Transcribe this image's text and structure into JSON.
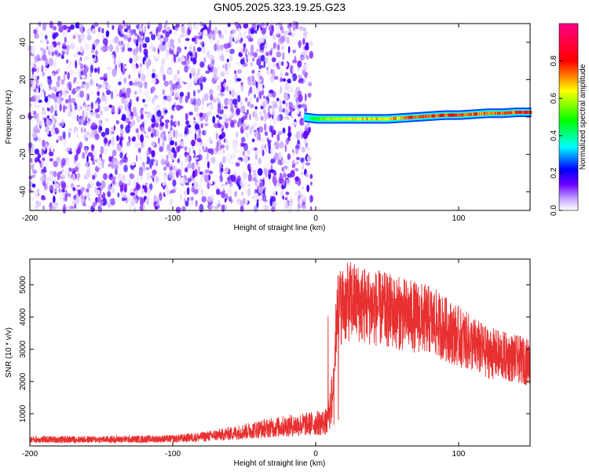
{
  "title": "GN05.2025.323.19.25.G23",
  "chart_data": [
    {
      "type": "heatmap",
      "xlabel": "Height of straight line (km)",
      "ylabel": "Frequency (Hz)",
      "xlim": [
        -200,
        150
      ],
      "ylim": [
        -50,
        50
      ],
      "xticks": [
        -200,
        -100,
        0,
        100
      ],
      "yticks": [
        -40,
        -20,
        0,
        20,
        40
      ],
      "colorbar": {
        "label": "Normalized spectral amplitude",
        "ticks": [
          0.0,
          0.2,
          0.4,
          0.6,
          0.8
        ],
        "range": [
          0,
          1
        ],
        "colors": [
          "#ffffff",
          "#6a00ff",
          "#0000ff",
          "#00ffff",
          "#00ff00",
          "#ffff00",
          "#ff0000",
          "#ff00a0"
        ]
      },
      "signal_track": {
        "x": [
          -10,
          0,
          10,
          20,
          30,
          40,
          50,
          60,
          70,
          80,
          90,
          100,
          110,
          120,
          130,
          140,
          150
        ],
        "freq": [
          0,
          -1,
          -1,
          -1,
          -1,
          -1,
          -1,
          -0.5,
          0,
          0.5,
          1,
          1,
          1.5,
          2,
          2,
          2.5,
          2.5
        ],
        "amplitude": [
          0.3,
          0.5,
          0.6,
          0.65,
          0.7,
          0.7,
          0.72,
          0.75,
          0.8,
          0.8,
          0.82,
          0.8,
          0.78,
          0.75,
          0.8,
          0.82,
          0.85
        ]
      },
      "noise_region_x": [
        -200,
        -3
      ]
    },
    {
      "type": "line",
      "xlabel": "Height of straight line (km)",
      "ylabel": "SNR (10 * v/v)",
      "xlim": [
        -200,
        150
      ],
      "ylim": [
        0,
        5800
      ],
      "xticks": [
        -200,
        -100,
        0,
        100
      ],
      "yticks": [
        1000,
        2000,
        3000,
        4000,
        5000
      ],
      "color": "#e83030",
      "envelope": {
        "x": [
          -200,
          -150,
          -100,
          -80,
          -60,
          -40,
          -20,
          0,
          8,
          12,
          15,
          25,
          40,
          60,
          80,
          100,
          120,
          150
        ],
        "y": [
          200,
          200,
          220,
          280,
          380,
          520,
          620,
          700,
          750,
          1600,
          4300,
          4500,
          4300,
          4100,
          3900,
          3400,
          2900,
          2600
        ]
      }
    }
  ]
}
